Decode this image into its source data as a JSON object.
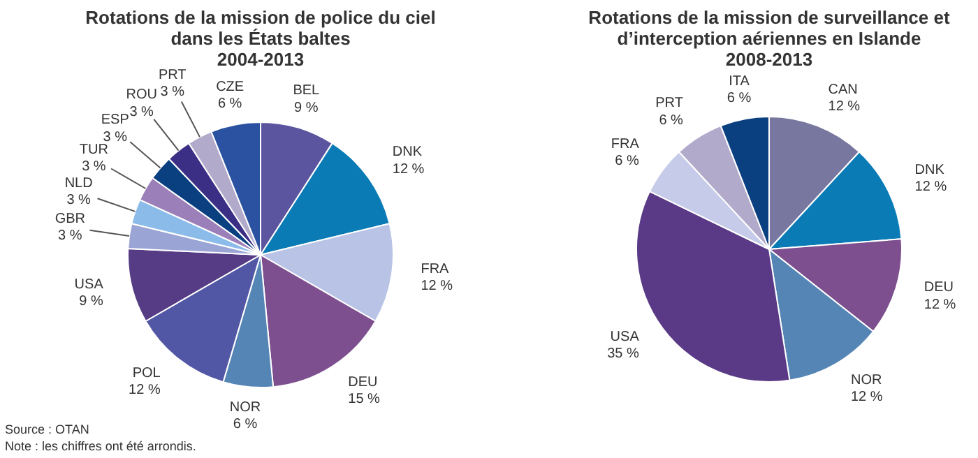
{
  "chart_data": [
    {
      "type": "pie",
      "title": "Rotations de la mission de police du ciel\ndans les États baltes\n2004-2013",
      "categories": [
        "BEL",
        "DNK",
        "FRA",
        "DEU",
        "NOR",
        "POL",
        "USA",
        "GBR",
        "NLD",
        "TUR",
        "ESP",
        "ROU",
        "PRT",
        "CZE"
      ],
      "values": [
        9,
        12,
        12,
        15,
        6,
        12,
        9,
        3,
        3,
        3,
        3,
        3,
        3,
        6
      ],
      "value_labels": [
        "9 %",
        "12 %",
        "12 %",
        "15 %",
        "6 %",
        "12 %",
        "9 %",
        "3 %",
        "3 %",
        "3 %",
        "3 %",
        "3 %",
        "3 %",
        "6 %"
      ],
      "colors": [
        "#5b55a0",
        "#0a7bb5",
        "#b8c3e6",
        "#7e4f8e",
        "#5585b5",
        "#5257a5",
        "#563c85",
        "#9aa5d5",
        "#8bbbe8",
        "#9b7fb8",
        "#0a3f80",
        "#3b2e85",
        "#b2aacb",
        "#2a52a0"
      ],
      "annotations": [
        "Source : OTAN",
        "Note : les chiffres ont été arrondis."
      ]
    },
    {
      "type": "pie",
      "title": "Rotations de la mission de surveillance et\nd’interception aériennes en Islande\n2008-2013",
      "categories": [
        "CAN",
        "DNK",
        "DEU",
        "NOR",
        "USA",
        "FRA",
        "PRT",
        "ITA"
      ],
      "values": [
        12,
        12,
        12,
        12,
        35,
        6,
        6,
        6
      ],
      "value_labels": [
        "12 %",
        "12 %",
        "12 %",
        "12 %",
        "35 %",
        "6 %",
        "6 %",
        "6 %"
      ],
      "colors": [
        "#77779f",
        "#0a7bb5",
        "#7e4f8e",
        "#5585b5",
        "#5a3a87",
        "#c5cbe8",
        "#b2aacb",
        "#0a3f80"
      ]
    }
  ]
}
